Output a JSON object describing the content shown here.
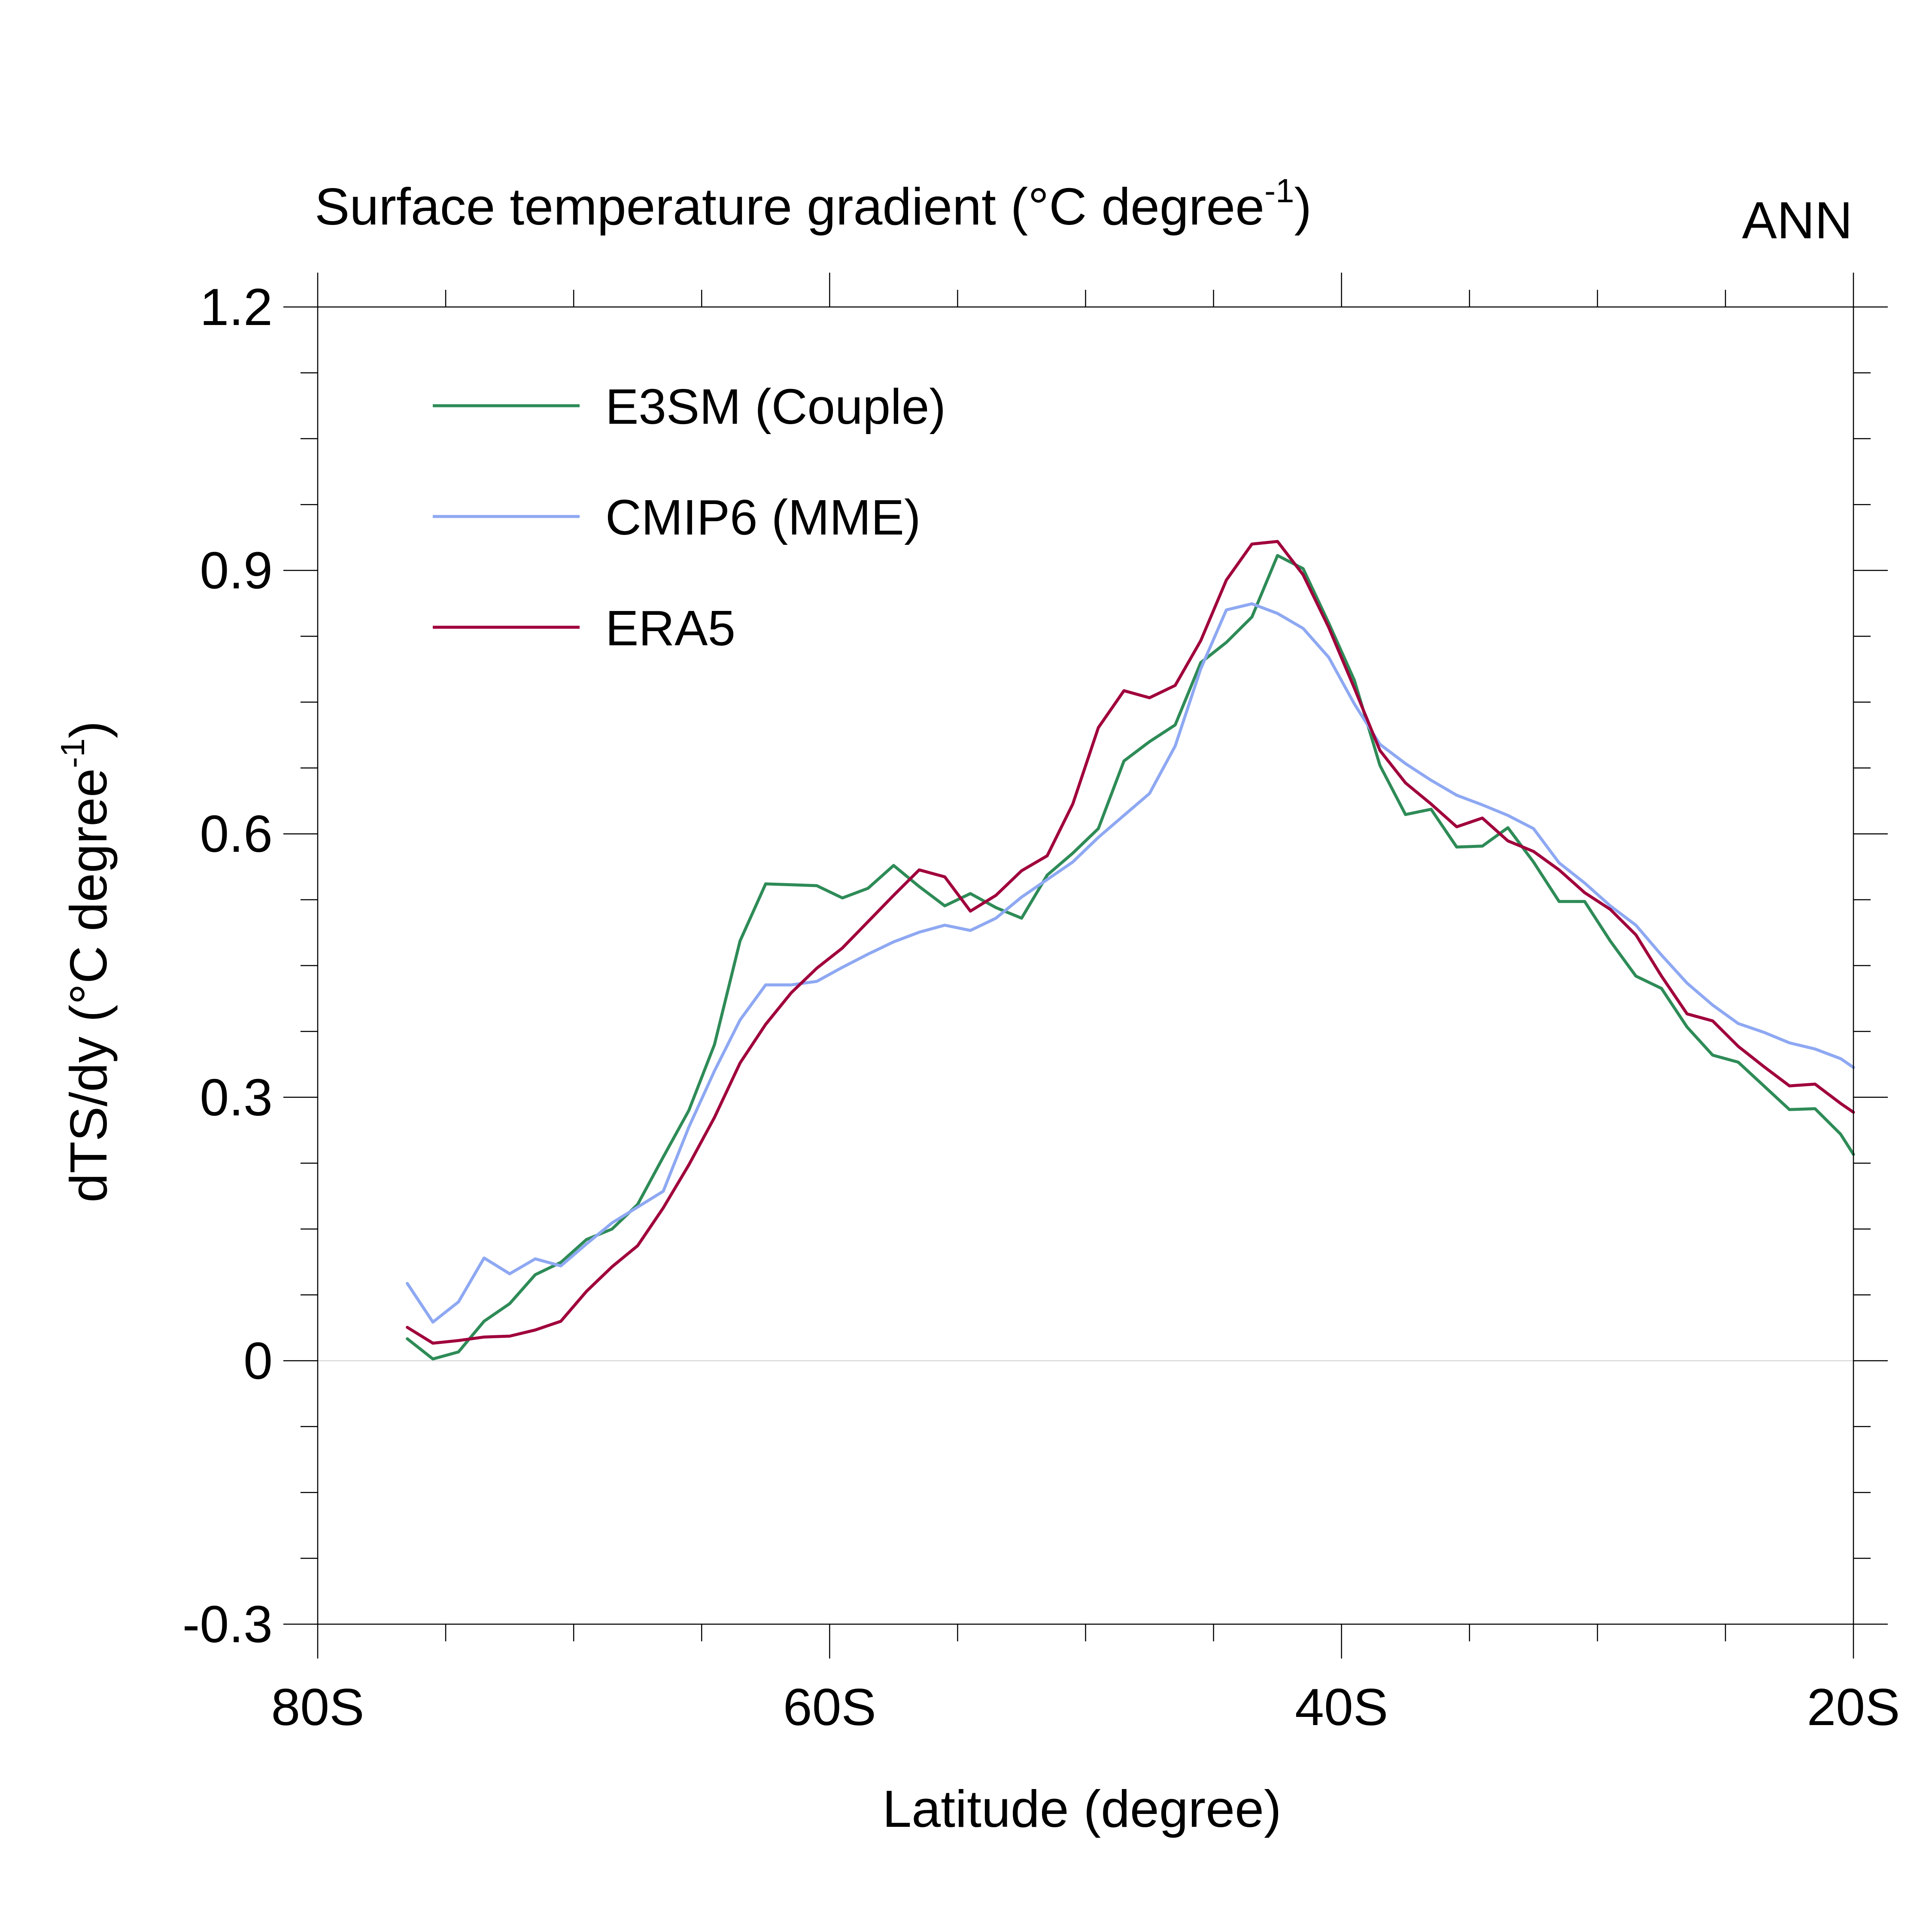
{
  "chart_data": {
    "type": "line",
    "title": "Surface temperature gradient (°C degree",
    "title_sup": "-1",
    "title_end": ")",
    "season_label": "ANN",
    "xlabel": "Latitude (degree)",
    "ylabel": "dTS/dy (°C degree",
    "ylabel_sup": "-1",
    "ylabel_end": ")",
    "xlim": [
      -80,
      -20
    ],
    "ylim": [
      -0.3,
      1.2
    ],
    "x_major_ticks": [
      -80,
      -60,
      -40,
      -20
    ],
    "x_tick_labels": [
      "80S",
      "60S",
      "40S",
      "20S"
    ],
    "x_minor_step": 5,
    "y_major_ticks": [
      -0.3,
      0,
      0.3,
      0.6,
      0.9,
      1.2
    ],
    "y_tick_labels": [
      "-0.3",
      "0",
      "0.3",
      "0.6",
      "0.9",
      "1.2"
    ],
    "y_minor_step": 0.075,
    "zero_line": true,
    "legend_position": "top-left",
    "series": [
      {
        "name": "E3SM (Couple)",
        "color": "#2e8b57",
        "x": [
          -76.5,
          -75.5,
          -74.5,
          -73.5,
          -72.5,
          -71.5,
          -70.5,
          -69.5,
          -68.5,
          -67.5,
          -66.5,
          -65.5,
          -64.5,
          -63.5,
          -62.5,
          -61.5,
          -60.5,
          -59.5,
          -58.5,
          -57.5,
          -56.5,
          -55.5,
          -54.5,
          -53.5,
          -52.5,
          -51.5,
          -50.5,
          -49.5,
          -48.5,
          -47.5,
          -46.5,
          -45.5,
          -44.5,
          -43.5,
          -42.5,
          -41.5,
          -40.5,
          -39.5,
          -38.5,
          -37.5,
          -36.5,
          -35.5,
          -34.5,
          -33.5,
          -32.5,
          -31.5,
          -30.5,
          -29.5,
          -28.5,
          -27.5,
          -26.5,
          -25.5,
          -24.5,
          -23.5,
          -22.5,
          -21.5,
          -20.5,
          -20.0
        ],
        "y": [
          0.025,
          0.002,
          0.01,
          0.045,
          0.065,
          0.098,
          0.112,
          0.138,
          0.15,
          0.178,
          0.232,
          0.285,
          0.36,
          0.478,
          0.543,
          0.542,
          0.541,
          0.527,
          0.538,
          0.564,
          0.54,
          0.518,
          0.532,
          0.516,
          0.504,
          0.553,
          0.578,
          0.606,
          0.683,
          0.705,
          0.724,
          0.795,
          0.818,
          0.847,
          0.917,
          0.902,
          0.84,
          0.775,
          0.678,
          0.622,
          0.628,
          0.585,
          0.586,
          0.607,
          0.568,
          0.523,
          0.523,
          0.478,
          0.438,
          0.424,
          0.38,
          0.348,
          0.34,
          0.313,
          0.286,
          0.287,
          0.258,
          0.235
        ]
      },
      {
        "name": "CMIP6 (MME)",
        "color": "#8ea8f2",
        "x": [
          -76.5,
          -75.5,
          -74.5,
          -73.5,
          -72.5,
          -71.5,
          -70.5,
          -69.5,
          -68.5,
          -67.5,
          -66.5,
          -65.5,
          -64.5,
          -63.5,
          -62.5,
          -61.5,
          -60.5,
          -59.5,
          -58.5,
          -57.5,
          -56.5,
          -55.5,
          -54.5,
          -53.5,
          -52.5,
          -51.5,
          -50.5,
          -49.5,
          -48.5,
          -47.5,
          -46.5,
          -45.5,
          -44.5,
          -43.5,
          -42.5,
          -41.5,
          -40.5,
          -39.5,
          -38.5,
          -37.5,
          -36.5,
          -35.5,
          -34.5,
          -33.5,
          -32.5,
          -31.5,
          -30.5,
          -29.5,
          -28.5,
          -27.5,
          -26.5,
          -25.5,
          -24.5,
          -23.5,
          -22.5,
          -21.5,
          -20.5,
          -20.0
        ],
        "y": [
          0.088,
          0.044,
          0.067,
          0.117,
          0.099,
          0.116,
          0.108,
          0.133,
          0.157,
          0.175,
          0.193,
          0.266,
          0.33,
          0.388,
          0.428,
          0.428,
          0.432,
          0.448,
          0.463,
          0.477,
          0.488,
          0.496,
          0.49,
          0.504,
          0.528,
          0.548,
          0.568,
          0.596,
          0.621,
          0.646,
          0.7,
          0.788,
          0.855,
          0.862,
          0.851,
          0.834,
          0.801,
          0.748,
          0.702,
          0.68,
          0.661,
          0.644,
          0.633,
          0.621,
          0.606,
          0.567,
          0.544,
          0.518,
          0.496,
          0.462,
          0.43,
          0.405,
          0.384,
          0.374,
          0.362,
          0.355,
          0.344,
          0.334
        ]
      },
      {
        "name": "ERA5",
        "color": "#a0003c",
        "x": [
          -76.5,
          -75.5,
          -74.5,
          -73.5,
          -72.5,
          -71.5,
          -70.5,
          -69.5,
          -68.5,
          -67.5,
          -66.5,
          -65.5,
          -64.5,
          -63.5,
          -62.5,
          -61.5,
          -60.5,
          -59.5,
          -58.5,
          -57.5,
          -56.5,
          -55.5,
          -54.5,
          -53.5,
          -52.5,
          -51.5,
          -50.5,
          -49.5,
          -48.5,
          -47.5,
          -46.5,
          -45.5,
          -44.5,
          -43.5,
          -42.5,
          -41.5,
          -40.5,
          -39.5,
          -38.5,
          -37.5,
          -36.5,
          -35.5,
          -34.5,
          -33.5,
          -32.5,
          -31.5,
          -30.5,
          -29.5,
          -28.5,
          -27.5,
          -26.5,
          -25.5,
          -24.5,
          -23.5,
          -22.5,
          -21.5,
          -20.5,
          -20.0
        ],
        "y": [
          0.038,
          0.02,
          0.023,
          0.027,
          0.028,
          0.035,
          0.045,
          0.079,
          0.107,
          0.131,
          0.174,
          0.223,
          0.277,
          0.339,
          0.383,
          0.419,
          0.447,
          0.47,
          0.5,
          0.53,
          0.559,
          0.551,
          0.512,
          0.53,
          0.558,
          0.575,
          0.634,
          0.721,
          0.763,
          0.755,
          0.769,
          0.82,
          0.889,
          0.93,
          0.933,
          0.895,
          0.835,
          0.766,
          0.695,
          0.658,
          0.634,
          0.608,
          0.618,
          0.592,
          0.58,
          0.559,
          0.533,
          0.514,
          0.485,
          0.438,
          0.395,
          0.387,
          0.358,
          0.335,
          0.313,
          0.315,
          0.293,
          0.283
        ]
      }
    ]
  }
}
